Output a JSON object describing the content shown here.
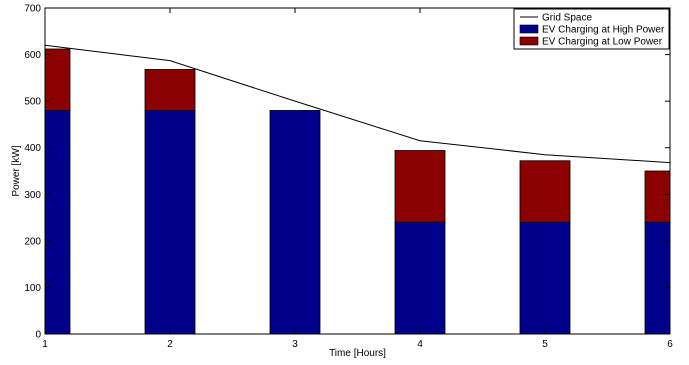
{
  "chart_data": {
    "type": "bar",
    "stacked": true,
    "x": [
      1,
      2,
      3,
      4,
      5,
      6
    ],
    "xlabel": "Time [Hours]",
    "ylabel": "Power [kW]",
    "xlim": [
      1,
      6
    ],
    "ylim": [
      0,
      700
    ],
    "xticks": [
      "1",
      "2",
      "3",
      "4",
      "5",
      "6"
    ],
    "yticks": [
      "0",
      "100",
      "200",
      "300",
      "400",
      "500",
      "600",
      "700"
    ],
    "grid": false,
    "legend_position": "top-right",
    "series": [
      {
        "name": "EV Charging at High Power",
        "type": "bar",
        "color": "#00008B",
        "values": [
          480,
          480,
          480,
          240,
          240,
          240
        ]
      },
      {
        "name": "EV Charging at Low Power",
        "type": "bar",
        "color": "#8B0000",
        "values": [
          132,
          88,
          0,
          154,
          132,
          110
        ]
      },
      {
        "name": "Grid Space",
        "type": "line",
        "color": "#000000",
        "values": [
          620,
          587,
          500,
          415,
          385,
          368
        ]
      }
    ]
  }
}
